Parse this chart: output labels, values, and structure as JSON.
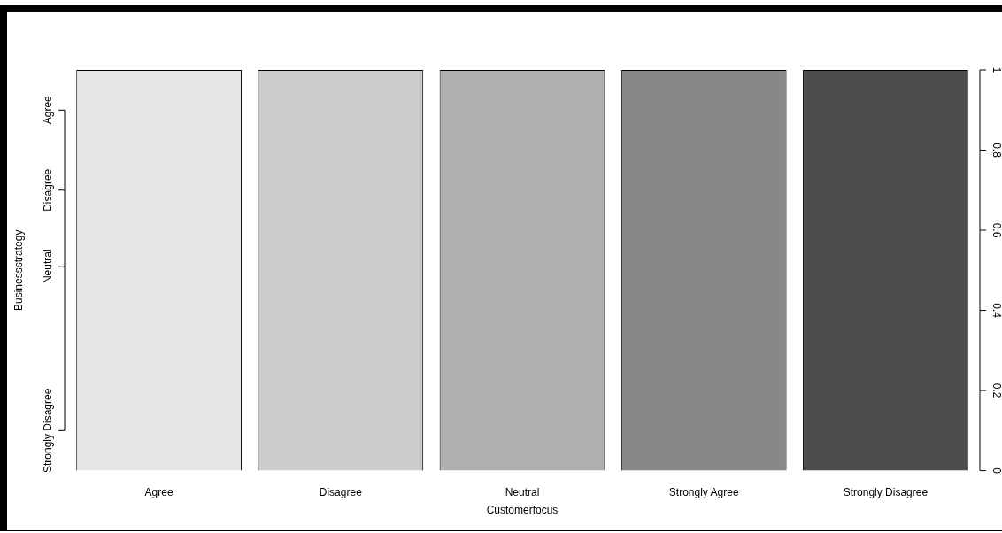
{
  "chart_data": {
    "type": "bar",
    "xlabel": "Customerfocus",
    "ylabel": "Businessstrategy",
    "categories": [
      "Agree",
      "Disagree",
      "Neutral",
      "Strongly Agree",
      "Strongly Disagree"
    ],
    "values": [
      1,
      1,
      1,
      1,
      1
    ],
    "colors": [
      "#e6e6e6",
      "#cccccc",
      "#afafaf",
      "#888888",
      "#4d4d4d"
    ],
    "ylim": [
      0,
      1
    ],
    "yticks": [
      0,
      0.2,
      0.4,
      0.6,
      0.8,
      1
    ],
    "annotations": [
      "Strongly Disagree",
      "Neutral",
      "Disagree",
      "Agree"
    ],
    "grid": false,
    "legend": false
  }
}
